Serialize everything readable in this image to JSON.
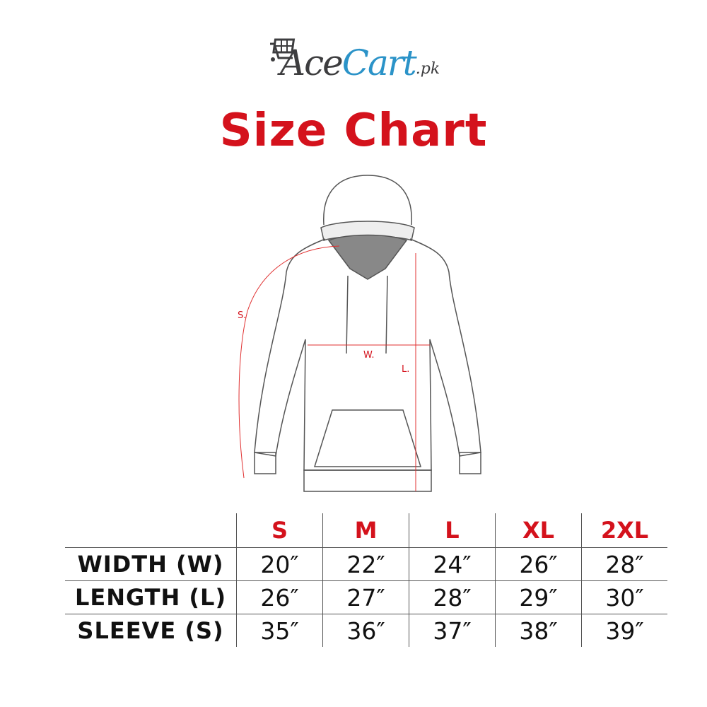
{
  "logo": {
    "part1": "Ace",
    "part2": "Cart",
    "suffix": ".pk",
    "icon": "shopping-cart-icon"
  },
  "title": "Size Chart",
  "diagram": {
    "labels": {
      "sleeve": "S.",
      "width": "W.",
      "length": "L."
    }
  },
  "table": {
    "sizes": [
      "S",
      "M",
      "L",
      "XL",
      "2XL"
    ],
    "rows": [
      {
        "label": "WIDTH (W)",
        "values": [
          "20″",
          "22″",
          "24″",
          "26″",
          "28″"
        ]
      },
      {
        "label": "LENGTH (L)",
        "values": [
          "26″",
          "27″",
          "28″",
          "29″",
          "30″"
        ]
      },
      {
        "label": "SLEEVE (S)",
        "values": [
          "35″",
          "36″",
          "37″",
          "38″",
          "39″"
        ]
      }
    ]
  },
  "colors": {
    "accent": "#d4121c",
    "logo_blue": "#2b93c8",
    "logo_dark": "#3d3d3f"
  }
}
